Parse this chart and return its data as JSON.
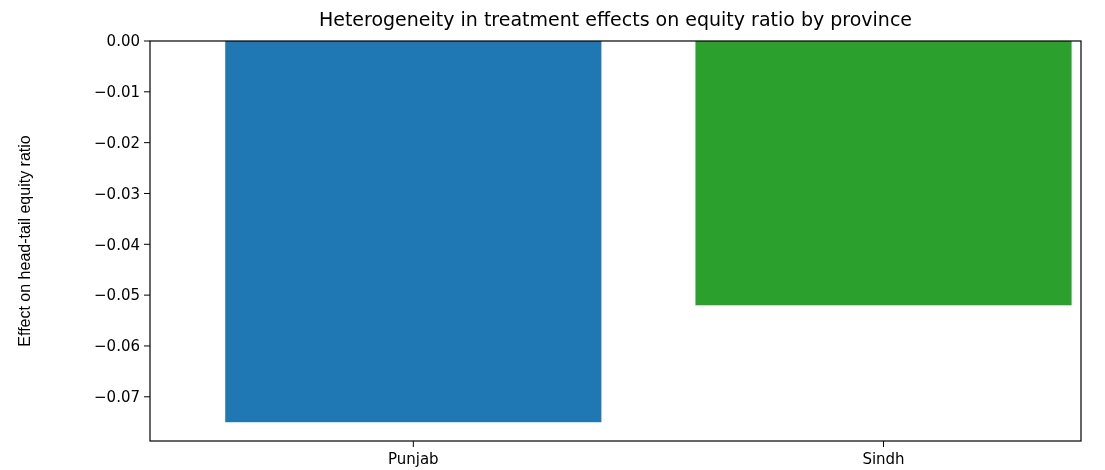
{
  "chart_data": {
    "type": "bar",
    "title": "Heterogeneity in treatment effects on equity ratio by province",
    "ylabel": "Effect on head-tail equity ratio",
    "categories": [
      "Punjab",
      "Sindh"
    ],
    "values": [
      -0.075,
      -0.052
    ],
    "colors": [
      "#1f77b4",
      "#2ca02c"
    ],
    "ylim": [
      -0.0787,
      0
    ],
    "yticks": [
      {
        "value": 0,
        "label": "0.00"
      },
      {
        "value": -0.01,
        "label": "−0.01"
      },
      {
        "value": -0.02,
        "label": "−0.02"
      },
      {
        "value": -0.03,
        "label": "−0.03"
      },
      {
        "value": -0.04,
        "label": "−0.04"
      },
      {
        "value": -0.05,
        "label": "−0.05"
      },
      {
        "value": -0.06,
        "label": "−0.06"
      },
      {
        "value": -0.07,
        "label": "−0.07"
      }
    ]
  }
}
